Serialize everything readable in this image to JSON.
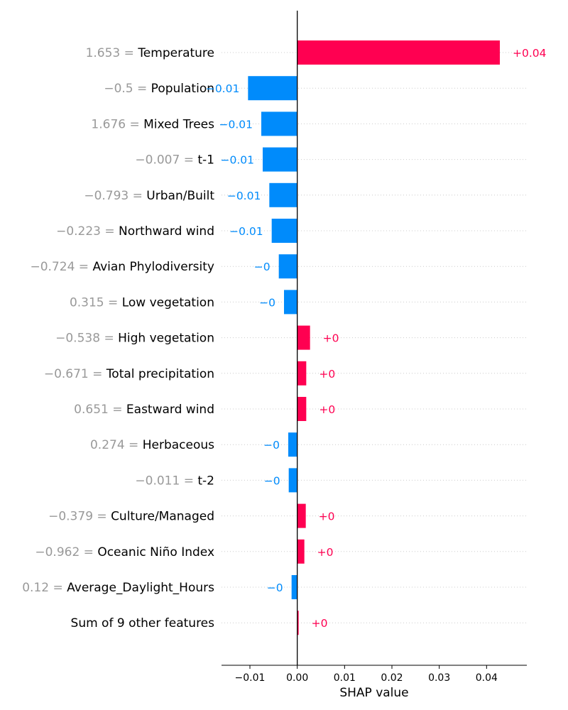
{
  "chart_data": {
    "type": "bar",
    "orientation": "horizontal",
    "xlabel": "SHAP value",
    "xlim": [
      -0.016,
      0.0485
    ],
    "xticks": [
      "−0.01",
      "0.00",
      "0.01",
      "0.02",
      "0.03",
      "0.04"
    ],
    "xtick_values": [
      -0.01,
      0.0,
      0.01,
      0.02,
      0.03,
      0.04
    ],
    "grid": "dotted horizontal lines per feature",
    "colors": {
      "positive": "#ff0051",
      "negative": "#008bfb",
      "feature_value": "#999999",
      "axis": "#000000"
    },
    "features": [
      {
        "value": "1.653",
        "name": "Temperature",
        "shap": 0.0428,
        "label": "+0.04"
      },
      {
        "value": "−0.5",
        "name": "Population",
        "shap": -0.0104,
        "label": "−0.01"
      },
      {
        "value": "1.676",
        "name": "Mixed Trees",
        "shap": -0.0076,
        "label": "−0.01"
      },
      {
        "value": "−0.007",
        "name": "t-1",
        "shap": -0.0073,
        "label": "−0.01"
      },
      {
        "value": "−0.793",
        "name": "Urban/Built",
        "shap": -0.0059,
        "label": "−0.01"
      },
      {
        "value": "−0.223",
        "name": "Northward wind",
        "shap": -0.0054,
        "label": "−0.01"
      },
      {
        "value": "−0.724",
        "name": "Avian Phylodiversity",
        "shap": -0.0039,
        "label": "−0"
      },
      {
        "value": "0.315",
        "name": "Low vegetation",
        "shap": -0.0028,
        "label": "−0"
      },
      {
        "value": "−0.538",
        "name": "High vegetation",
        "shap": 0.0027,
        "label": "+0"
      },
      {
        "value": "−0.671",
        "name": "Total precipitation",
        "shap": 0.0019,
        "label": "+0"
      },
      {
        "value": "0.651",
        "name": "Eastward wind",
        "shap": 0.0019,
        "label": "+0"
      },
      {
        "value": "0.274",
        "name": "Herbaceous",
        "shap": -0.0019,
        "label": "−0"
      },
      {
        "value": "−0.011",
        "name": "t-2",
        "shap": -0.0018,
        "label": "−0"
      },
      {
        "value": "−0.379",
        "name": "Culture/Managed",
        "shap": 0.0018,
        "label": "+0"
      },
      {
        "value": "−0.962",
        "name": "Oceanic Niño Index",
        "shap": 0.0015,
        "label": "+0"
      },
      {
        "value": "0.12",
        "name": "Average_Daylight_Hours",
        "shap": -0.0012,
        "label": "−0"
      },
      {
        "value": "",
        "name": "Sum of 9 other features",
        "shap": 0.0003,
        "label": "+0"
      }
    ]
  }
}
